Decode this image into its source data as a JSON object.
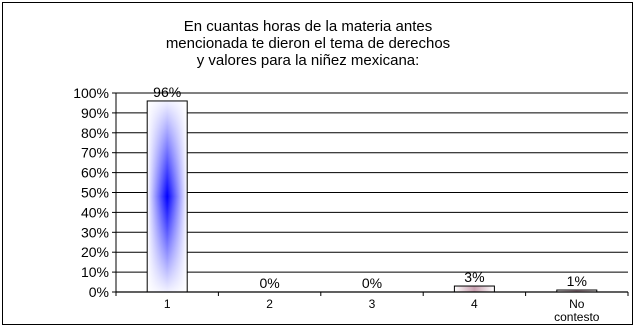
{
  "chart_data": {
    "type": "bar",
    "title": [
      "En cuantas horas de la materia antes",
      "mencionada te dieron el tema de derechos",
      "y valores para la niñez mexicana:"
    ],
    "categories": [
      "1",
      "2",
      "3",
      "4",
      [
        "No",
        "contesto"
      ]
    ],
    "values": [
      96,
      0,
      0,
      3,
      1
    ],
    "data_labels": [
      "96%",
      "0%",
      "0%",
      "3%",
      "1%"
    ],
    "y_ticks": [
      "0%",
      "10%",
      "20%",
      "30%",
      "40%",
      "50%",
      "60%",
      "70%",
      "80%",
      "90%",
      "100%"
    ],
    "ylim": [
      0,
      100
    ],
    "grid": true,
    "legend": "none",
    "colors": {
      "bar_edge": "#0000ff",
      "bar_center": "#0000ff",
      "bar_light": "#ffffff",
      "bar_small": "#c8a0b0",
      "grid": "#000000",
      "outline": "#000000"
    }
  }
}
